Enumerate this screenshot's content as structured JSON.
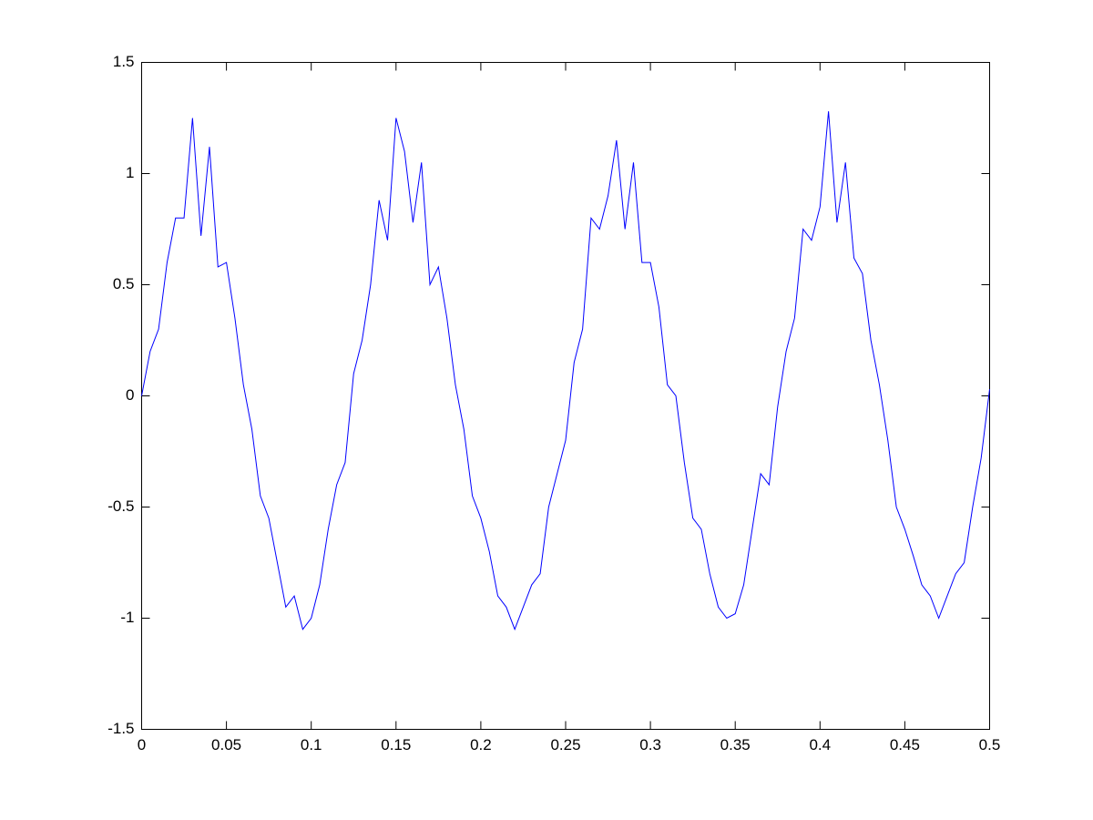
{
  "chart_data": {
    "type": "line",
    "x": [
      0,
      0.005,
      0.01,
      0.015,
      0.02,
      0.025,
      0.03,
      0.035,
      0.04,
      0.045,
      0.05,
      0.055,
      0.06,
      0.065,
      0.07,
      0.075,
      0.08,
      0.085,
      0.09,
      0.095,
      0.1,
      0.105,
      0.11,
      0.115,
      0.12,
      0.125,
      0.13,
      0.135,
      0.14,
      0.145,
      0.15,
      0.155,
      0.16,
      0.165,
      0.17,
      0.175,
      0.18,
      0.185,
      0.19,
      0.195,
      0.2,
      0.205,
      0.21,
      0.215,
      0.22,
      0.225,
      0.23,
      0.235,
      0.24,
      0.245,
      0.25,
      0.255,
      0.26,
      0.265,
      0.27,
      0.275,
      0.28,
      0.285,
      0.29,
      0.295,
      0.3,
      0.305,
      0.31,
      0.315,
      0.32,
      0.325,
      0.33,
      0.335,
      0.34,
      0.345,
      0.35,
      0.355,
      0.36,
      0.365,
      0.37,
      0.375,
      0.38,
      0.385,
      0.39,
      0.395,
      0.4,
      0.405,
      0.41,
      0.415,
      0.42,
      0.425,
      0.43,
      0.435,
      0.44,
      0.445,
      0.45,
      0.455,
      0.46,
      0.465,
      0.47,
      0.475,
      0.48,
      0.485,
      0.49,
      0.495,
      0.5
    ],
    "series": [
      {
        "color": "#0000ff",
        "values": [
          0.0,
          0.2,
          0.3,
          0.6,
          0.8,
          0.8,
          1.25,
          0.72,
          1.12,
          0.58,
          0.6,
          0.35,
          0.05,
          -0.15,
          -0.45,
          -0.55,
          -0.75,
          -0.95,
          -0.9,
          -1.05,
          -1.0,
          -0.85,
          -0.6,
          -0.4,
          -0.3,
          0.1,
          0.25,
          0.5,
          0.88,
          0.7,
          1.25,
          1.1,
          0.78,
          1.05,
          0.5,
          0.58,
          0.35,
          0.05,
          -0.15,
          -0.45,
          -0.55,
          -0.7,
          -0.9,
          -0.95,
          -1.05,
          -0.95,
          -0.85,
          -0.8,
          -0.5,
          -0.35,
          -0.2,
          0.15,
          0.3,
          0.8,
          0.75,
          0.9,
          1.15,
          0.75,
          1.05,
          0.6,
          0.6,
          0.4,
          0.05,
          0.0,
          -0.3,
          -0.55,
          -0.6,
          -0.8,
          -0.95,
          -1.0,
          -0.98,
          -0.85,
          -0.6,
          -0.35,
          -0.4,
          -0.05,
          0.2,
          0.35,
          0.75,
          0.7,
          0.85,
          1.28,
          0.78,
          1.05,
          0.62,
          0.55,
          0.25,
          0.05,
          -0.2,
          -0.5,
          -0.6,
          -0.72,
          -0.85,
          -0.9,
          -1.0,
          -0.9,
          -0.8,
          -0.75,
          -0.5,
          -0.28,
          0.03
        ]
      }
    ],
    "xlim": [
      0,
      0.5
    ],
    "xticks": [
      0,
      0.05,
      0.1,
      0.15,
      0.2,
      0.25,
      0.3,
      0.35,
      0.4,
      0.45,
      0.5
    ],
    "ylim": [
      -1.5,
      1.5
    ],
    "yticks": [
      -1.5,
      -1,
      -0.5,
      0,
      0.5,
      1,
      1.5
    ],
    "grid": false
  }
}
